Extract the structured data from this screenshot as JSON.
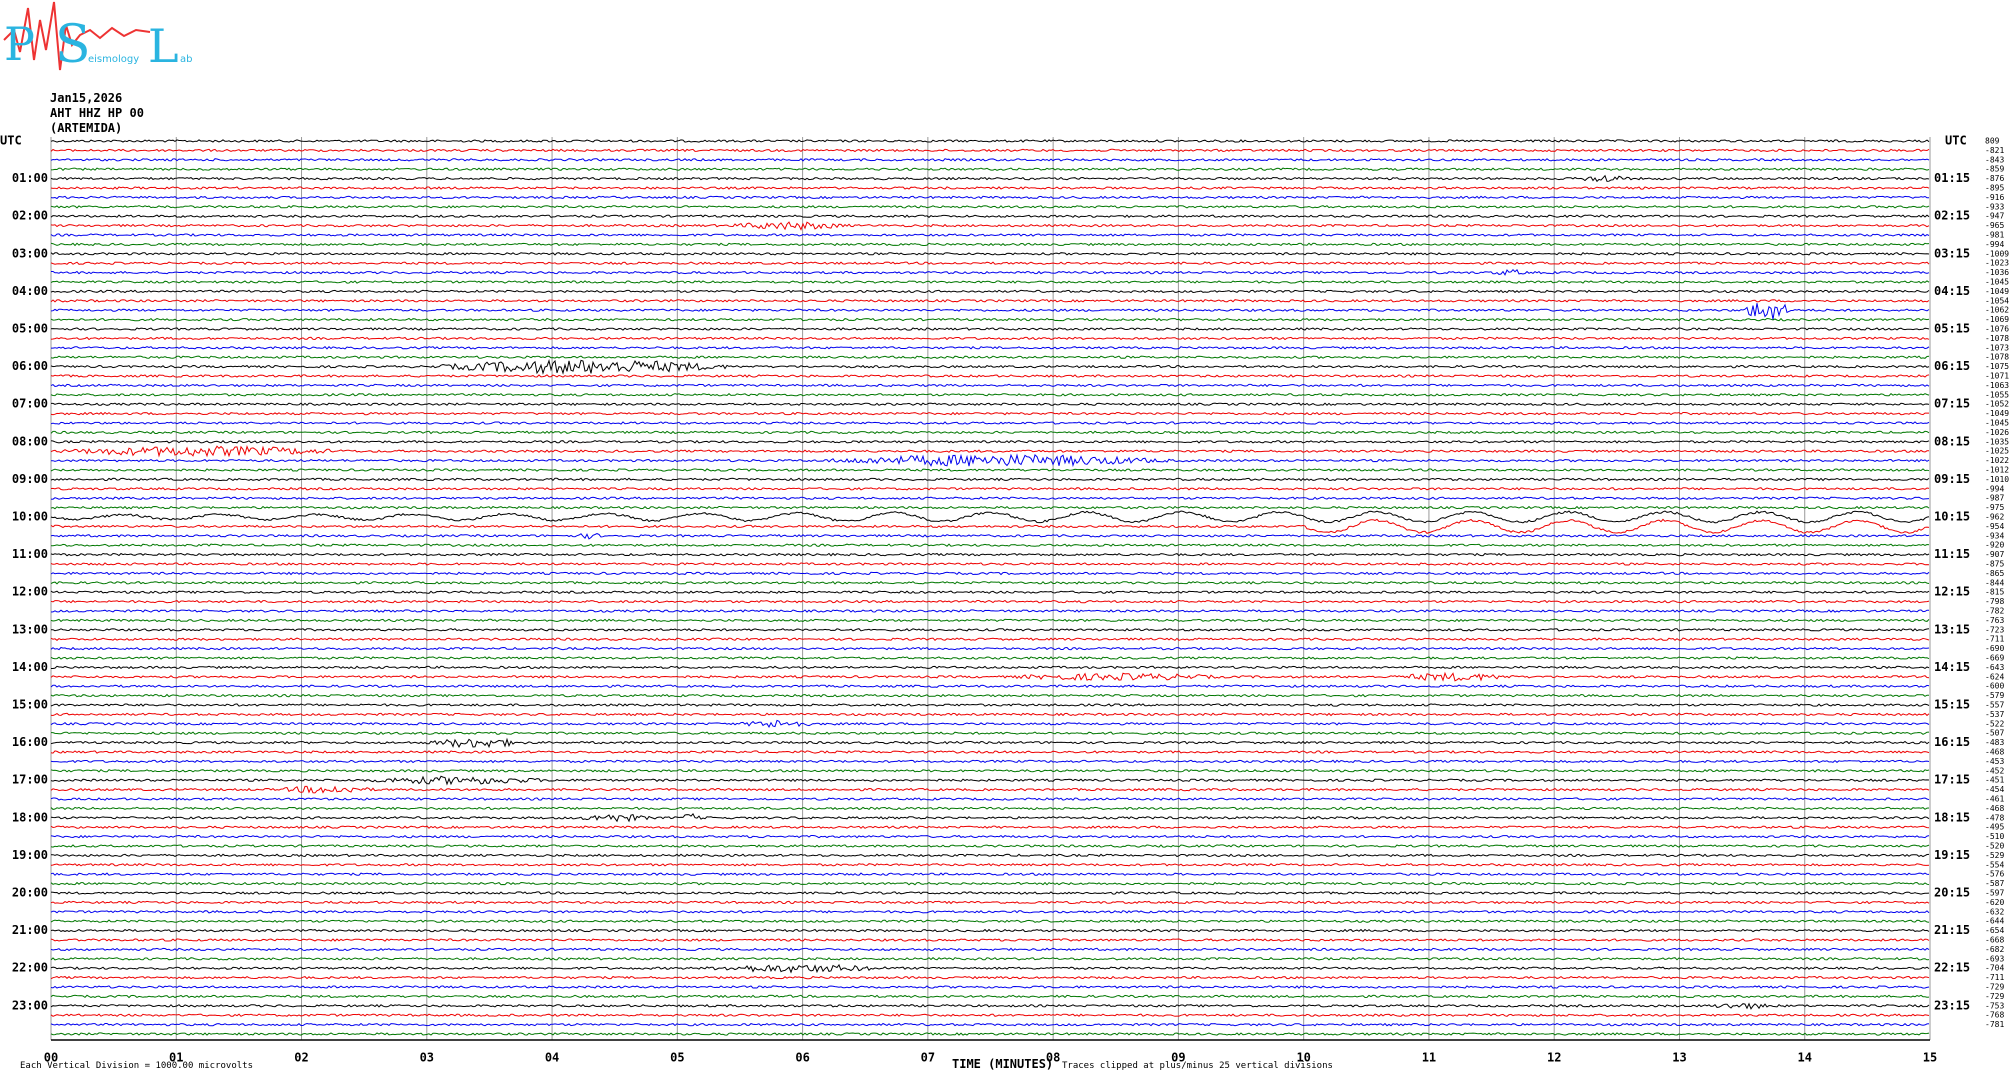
{
  "header": {
    "logo": [
      "P",
      "S",
      "L"
    ],
    "logo_text": [
      "eismology",
      "ab"
    ],
    "date": "Jan15,2026",
    "station": "AHT HHZ HP 00",
    "location": "(ARTEMIDA)"
  },
  "left_labels": [
    "UTC",
    "01:00",
    "02:00",
    "03:00",
    "04:00",
    "05:00",
    "06:00",
    "07:00",
    "08:00",
    "09:00",
    "10:00",
    "11:00",
    "12:00",
    "13:00",
    "14:00",
    "15:00",
    "16:00",
    "17:00",
    "18:00",
    "19:00",
    "20:00",
    "21:00",
    "22:00",
    "23:00"
  ],
  "right_labels": [
    "UTC",
    "01:15",
    "02:15",
    "03:15",
    "04:15",
    "05:15",
    "06:15",
    "07:15",
    "08:15",
    "09:15",
    "10:15",
    "11:15",
    "12:15",
    "13:15",
    "14:15",
    "15:15",
    "16:15",
    "17:15",
    "18:15",
    "19:15",
    "20:15",
    "21:15",
    "22:15",
    "23:15"
  ],
  "trace_offsets": [
    "809",
    "-821",
    "-843",
    "-859",
    "-876",
    "-895",
    "-916",
    "-933",
    "-947",
    "-965",
    "-981",
    "-994",
    "-1009",
    "-1023",
    "-1036",
    "-1045",
    "-1049",
    "-1054",
    "-1062",
    "-1069",
    "-1076",
    "-1078",
    "-1073",
    "-1078",
    "-1075",
    "-1071",
    "-1063",
    "-1055",
    "-1052",
    "-1049",
    "-1045",
    "-1026",
    "-1035",
    "-1025",
    "-1022",
    "-1012",
    "-1010",
    "-994",
    "-987",
    "-975",
    "-962",
    "-954",
    "-934",
    "-920",
    "-907",
    "-875",
    "-865",
    "-844",
    "-815",
    "-798",
    "-782",
    "-763",
    "-723",
    "-711",
    "-690",
    "-669",
    "-643",
    "-624",
    "-600",
    "-579",
    "-557",
    "-537",
    "-522",
    "-507",
    "-483",
    "-468",
    "-453",
    "-452",
    "-451",
    "-454",
    "-461",
    "-468",
    "-478",
    "-495",
    "-510",
    "-520",
    "-529",
    "-554",
    "-576",
    "-587",
    "-597",
    "-620",
    "-632",
    "-644",
    "-654",
    "-668",
    "-682",
    "-693",
    "-704",
    "-711",
    "-729",
    "-729",
    "-753",
    "-768",
    "-781"
  ],
  "x_labels": [
    "00",
    "01",
    "02",
    "03",
    "04",
    "05",
    "06",
    "07",
    "08",
    "09",
    "10",
    "11",
    "12",
    "13",
    "14",
    "15"
  ],
  "footer": {
    "division": "Each Vertical Division = 1000.00 microvolts",
    "axis_title": "TIME (MINUTES)",
    "clip_note": "Traces clipped at plus/minus 25 vertical divisions"
  }
}
